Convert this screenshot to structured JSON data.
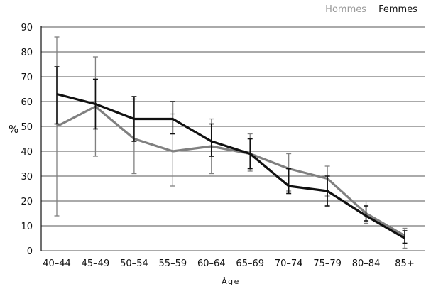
{
  "chart_data": {
    "type": "line",
    "ylabel": "%",
    "xlabel": "Âge",
    "x": [
      "40–44",
      "45–49",
      "50–54",
      "55–59",
      "60–64",
      "65–69",
      "70–74",
      "75–79",
      "80–84",
      "85+"
    ],
    "ylim": [
      0,
      90
    ],
    "yticks": [
      0,
      10,
      20,
      30,
      40,
      50,
      60,
      70,
      80,
      90
    ],
    "grid": true,
    "legend_position": "top-right",
    "series": [
      {
        "name": "Hommes",
        "color": "#808080",
        "values": [
          50,
          58,
          45,
          40,
          42,
          39,
          33,
          29,
          15,
          6
        ],
        "error_low": [
          14,
          38,
          31,
          26,
          31,
          32,
          24,
          22,
          11,
          1
        ],
        "error_high": [
          86,
          78,
          61,
          55,
          53,
          47,
          39,
          34,
          20,
          9
        ]
      },
      {
        "name": "Femmes",
        "color": "#111111",
        "values": [
          63,
          59,
          53,
          53,
          44,
          39,
          26,
          24,
          14,
          5
        ],
        "error_low": [
          51,
          49,
          44,
          47,
          38,
          33,
          23,
          18,
          12,
          3
        ],
        "error_high": [
          74,
          69,
          62,
          60,
          51,
          45,
          33,
          30,
          18,
          8
        ]
      }
    ]
  }
}
